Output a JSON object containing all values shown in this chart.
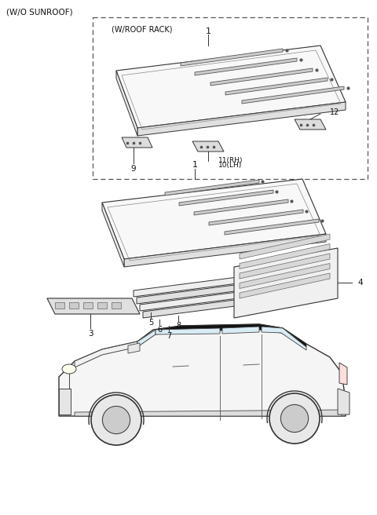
{
  "bg_color": "#ffffff",
  "line_color": "#333333",
  "fig_width": 4.8,
  "fig_height": 6.56,
  "dpi": 100,
  "wo_sunroof": "(W/O SUNROOF)",
  "w_roof_rack": "(W/ROOF RACK)"
}
